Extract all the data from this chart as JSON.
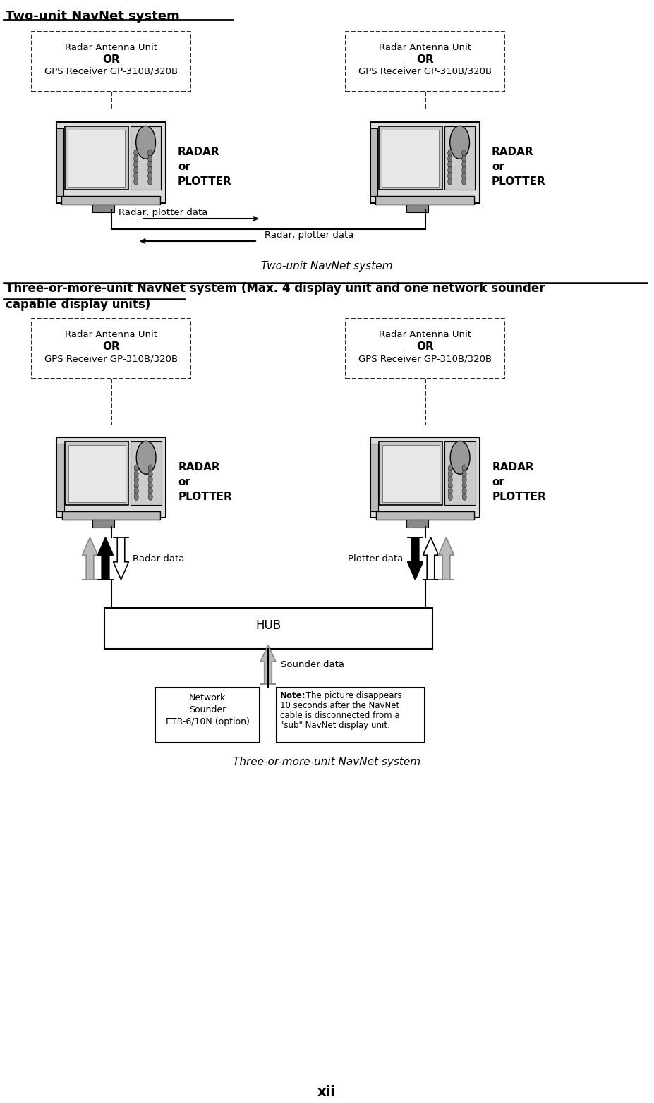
{
  "bg_color": "#ffffff",
  "title_two_unit": "Two-unit NavNet system",
  "caption_two": "Two-unit NavNet system",
  "caption_three": "Three-or-more-unit NavNet system",
  "antenna_line1": "Radar Antenna Unit",
  "antenna_line2": "OR",
  "antenna_line3": "GPS Receiver GP-310B/320B",
  "radar_plotter_text": "RADAR\nor\nPLOTTER",
  "radar_plotter_data_right": "Radar, plotter data",
  "radar_plotter_data_left": "Radar, plotter data",
  "radar_data_label": "Radar data",
  "plotter_data_label": "Plotter data",
  "sounder_data_label": "Sounder data",
  "hub_label": "HUB",
  "network_sounder_label": "Network\nSounder\nETR-6/10N (option)",
  "note_bold": "Note:",
  "note_rest": " The picture disappears\n10 seconds after the NavNet\ncable is disconnected from a\n\"sub\" NavNet display unit.",
  "three_title_line1": "Three-or-more-unit NavNet system (Max. 4 display unit and one network sounder",
  "three_title_line2": "capable display units)",
  "page_num": "xii",
  "gray_arrow": "#aaaaaa",
  "black": "#000000",
  "white": "#ffffff"
}
